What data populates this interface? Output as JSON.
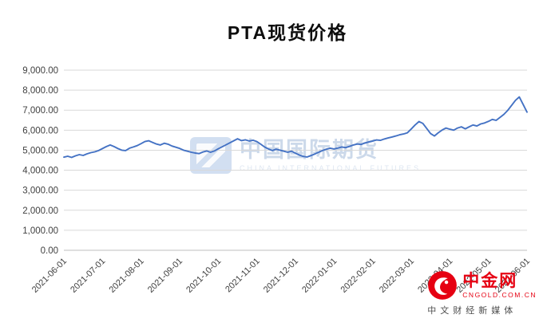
{
  "watermark": {
    "name_cn": "中国国际期货",
    "name_en": "CHINA INTERNATIONAL FUTURES"
  },
  "brand": {
    "name": "中金网",
    "domain": "CNGOLD.COM.CN",
    "tagline": "中文财经新媒体"
  },
  "chart_data": {
    "type": "line",
    "title": "PTA现货价格",
    "series_name": "PTA现货价格",
    "line_color": "#4472c4",
    "grid": true,
    "legend": "none",
    "ylim": [
      0,
      9000
    ],
    "y_tick_step": 1000,
    "y_tick_format": "#,##0.00",
    "x_tick_labels": [
      "2021-06-01",
      "2021-07-01",
      "2021-08-01",
      "2021-09-01",
      "2021-10-01",
      "2021-11-01",
      "2021-12-01",
      "2022-01-01",
      "2022-02-01",
      "2022-03-01",
      "2022-04-01",
      "2022-05-01",
      "2022-06-01"
    ],
    "values": [
      4650,
      4700,
      4640,
      4720,
      4780,
      4740,
      4820,
      4880,
      4920,
      4980,
      5080,
      5180,
      5260,
      5180,
      5080,
      5000,
      4980,
      5100,
      5160,
      5230,
      5330,
      5430,
      5470,
      5390,
      5310,
      5260,
      5350,
      5300,
      5210,
      5150,
      5090,
      5000,
      4950,
      4900,
      4860,
      4830,
      4910,
      4960,
      4900,
      4960,
      5070,
      5170,
      5270,
      5370,
      5470,
      5570,
      5480,
      5520,
      5460,
      5500,
      5430,
      5300,
      5160,
      5060,
      4980,
      5050,
      5000,
      4950,
      4900,
      4950,
      4850,
      4760,
      4690,
      4660,
      4730,
      4810,
      4900,
      4980,
      5050,
      5100,
      5060,
      5110,
      5160,
      5130,
      5190,
      5260,
      5310,
      5290,
      5360,
      5410,
      5460,
      5510,
      5490,
      5560,
      5610,
      5660,
      5710,
      5770,
      5810,
      5870,
      6060,
      6260,
      6430,
      6340,
      6090,
      5830,
      5710,
      5870,
      6010,
      6110,
      6050,
      6000,
      6110,
      6170,
      6070,
      6170,
      6260,
      6210,
      6310,
      6360,
      6440,
      6540,
      6490,
      6640,
      6790,
      6990,
      7240,
      7490,
      7660,
      7280,
      6900
    ]
  }
}
